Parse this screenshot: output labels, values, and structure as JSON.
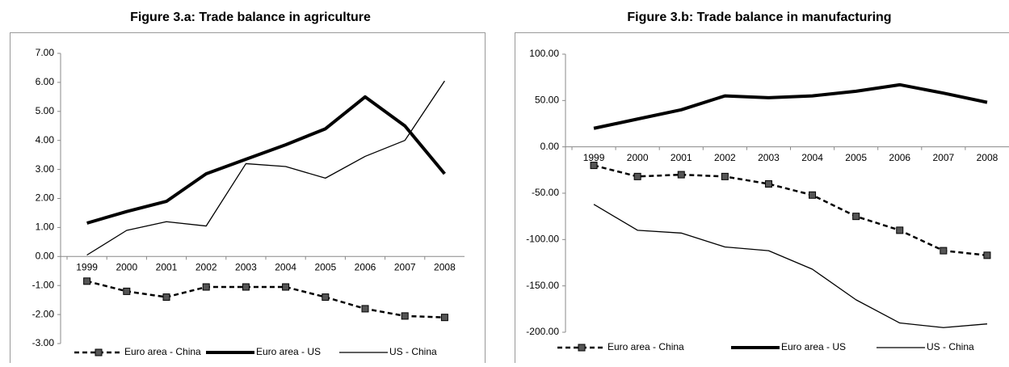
{
  "chart_data": [
    {
      "type": "line",
      "title": "Figure 3.a: Trade balance in agriculture",
      "categories": [
        "1999",
        "2000",
        "2001",
        "2002",
        "2003",
        "2004",
        "2005",
        "2006",
        "2007",
        "2008"
      ],
      "ylim": [
        -3,
        7
      ],
      "yticks": [
        {
          "value": -3,
          "label": "-3.00"
        },
        {
          "value": -2,
          "label": "-2.00"
        },
        {
          "value": -1,
          "label": "-1.00"
        },
        {
          "value": 0,
          "label": "0.00"
        },
        {
          "value": 1,
          "label": "1.00"
        },
        {
          "value": 2,
          "label": "2.00"
        },
        {
          "value": 3,
          "label": "3.00"
        },
        {
          "value": 4,
          "label": "4.00"
        },
        {
          "value": 5,
          "label": "5.00"
        },
        {
          "value": 6,
          "label": "6.00"
        },
        {
          "value": 7,
          "label": "7.00"
        }
      ],
      "grid": false,
      "legend": "bottom",
      "series": [
        {
          "name": "Euro area - China",
          "color": "#000000",
          "style": "dashed",
          "marker": "square",
          "values": [
            -0.85,
            -1.2,
            -1.4,
            -1.05,
            -1.05,
            -1.05,
            -1.4,
            -1.8,
            -2.05,
            -2.1
          ]
        },
        {
          "name": "Euro area - US",
          "color": "#000000",
          "style": "thick",
          "values": [
            1.15,
            1.55,
            1.9,
            2.85,
            3.35,
            3.85,
            4.4,
            5.5,
            4.5,
            2.85
          ]
        },
        {
          "name": "US - China",
          "color": "#000000",
          "style": "thin",
          "values": [
            0.05,
            0.9,
            1.2,
            1.05,
            3.2,
            3.1,
            2.7,
            3.45,
            4.0,
            6.05
          ]
        }
      ]
    },
    {
      "type": "line",
      "title": "Figure 3.b: Trade balance in manufacturing",
      "categories": [
        "1999",
        "2000",
        "2001",
        "2002",
        "2003",
        "2004",
        "2005",
        "2006",
        "2007",
        "2008"
      ],
      "ylim": [
        -200,
        100
      ],
      "yticks": [
        {
          "value": -200,
          "label": "-200.00"
        },
        {
          "value": -150,
          "label": "-150.00"
        },
        {
          "value": -100,
          "label": "-100.00"
        },
        {
          "value": -50,
          "label": "-50.00"
        },
        {
          "value": 0,
          "label": "0.00"
        },
        {
          "value": 50,
          "label": "50.00"
        },
        {
          "value": 100,
          "label": "100.00"
        }
      ],
      "grid": false,
      "legend": "bottom",
      "series": [
        {
          "name": "Euro area - China",
          "color": "#000000",
          "style": "dashed",
          "marker": "square",
          "values": [
            -20,
            -32,
            -30,
            -32,
            -40,
            -52,
            -75,
            -90,
            -112,
            -117
          ]
        },
        {
          "name": "Euro area - US",
          "color": "#000000",
          "style": "thick",
          "values": [
            20,
            30,
            40,
            55,
            53,
            55,
            60,
            67,
            58,
            48
          ]
        },
        {
          "name": "US - China",
          "color": "#000000",
          "style": "thin",
          "values": [
            -62,
            -90,
            -93,
            -108,
            -112,
            -132,
            -165,
            -190,
            -195,
            -191
          ]
        }
      ]
    }
  ]
}
